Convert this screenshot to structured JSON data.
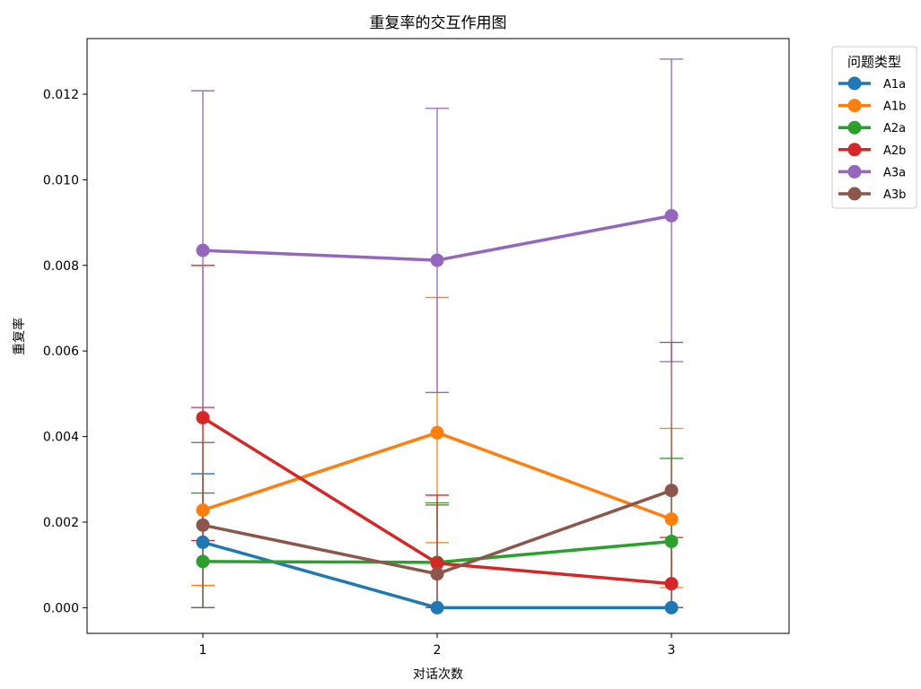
{
  "chart_data": {
    "type": "line",
    "title": "重复率的交互作用图",
    "xlabel": "对话次数",
    "ylabel": "重复率",
    "categories": [
      "1",
      "2",
      "3"
    ],
    "ylim": [
      -0.0006,
      0.0133
    ],
    "yticks": [
      0.0,
      0.002,
      0.004,
      0.006,
      0.008,
      0.01,
      0.012
    ],
    "ytick_labels": [
      "0.000",
      "0.002",
      "0.004",
      "0.006",
      "0.008",
      "0.010",
      "0.012"
    ],
    "grid": false,
    "legend": {
      "title": "问题类型",
      "placement": "outside-upper-right"
    },
    "series": [
      {
        "name": "A1a",
        "color": "#1f77b4",
        "values": [
          0.00153,
          0.0,
          0.0
        ],
        "err_low": [
          0.0,
          0.0,
          0.0
        ],
        "err_high": [
          0.00313,
          0.0,
          0.0
        ]
      },
      {
        "name": "A1b",
        "color": "#ff7f0e",
        "values": [
          0.00228,
          0.00409,
          0.00207
        ],
        "err_low": [
          0.00052,
          0.00152,
          0.00047
        ],
        "err_high": [
          0.00467,
          0.00725,
          0.00419
        ]
      },
      {
        "name": "A2a",
        "color": "#2ca02c",
        "values": [
          0.00108,
          0.00106,
          0.00155
        ],
        "err_low": [
          0.0,
          0.0,
          0.0
        ],
        "err_high": [
          0.00268,
          0.00245,
          0.00349
        ]
      },
      {
        "name": "A2b",
        "color": "#d62728",
        "values": [
          0.00444,
          0.00104,
          0.00056
        ],
        "err_low": [
          0.00157,
          0.0,
          0.0
        ],
        "err_high": [
          0.008,
          0.00263,
          0.00164
        ]
      },
      {
        "name": "A3a",
        "color": "#9467bd",
        "values": [
          0.00835,
          0.00812,
          0.00916
        ],
        "err_low": [
          0.00468,
          0.00503,
          0.00575
        ],
        "err_high": [
          0.01208,
          0.01167,
          0.01282
        ]
      },
      {
        "name": "A3b",
        "color": "#8c564b",
        "values": [
          0.00193,
          0.00079,
          0.00274
        ],
        "err_low": [
          0.0,
          0.0,
          0.0
        ],
        "err_high": [
          0.00386,
          0.0024,
          0.0062
        ]
      }
    ]
  }
}
